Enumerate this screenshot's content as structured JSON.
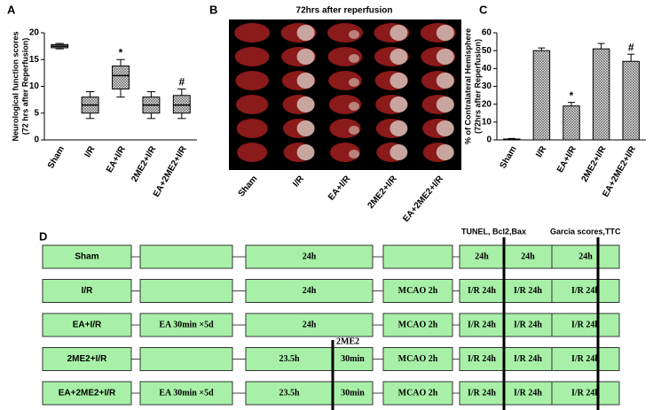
{
  "chart_data": [
    {
      "type": "box",
      "panel": "A",
      "ylabel": [
        "Neurological function scores",
        "(72 hrs after Reperfusion)"
      ],
      "categories": [
        "Sham",
        "I/R",
        "EA+I/R",
        "2ME2+I/R",
        "EA+2ME2+I/R"
      ],
      "min": [
        17,
        4,
        8,
        4,
        4
      ],
      "q1": [
        17.2,
        5,
        9.5,
        5,
        5
      ],
      "median": [
        17.5,
        6.5,
        12,
        6.5,
        6.5
      ],
      "q3": [
        17.8,
        8,
        13.8,
        8,
        8.3
      ],
      "max": [
        18,
        9,
        15,
        9,
        9.5
      ],
      "annotations": [
        null,
        null,
        "*",
        null,
        "#"
      ],
      "ylim": [
        0,
        20
      ],
      "yticks": [
        0,
        5,
        10,
        15,
        20
      ],
      "color": "#bdbdbd"
    },
    {
      "type": "bar",
      "panel": "C",
      "ylabel": [
        "% of Contralateral Hemisphere",
        "(72hrs after Reperfusion)"
      ],
      "categories": [
        "Sham",
        "I/R",
        "EA+I/R",
        "2ME2+I/R",
        "EA+2ME2+I/R"
      ],
      "values": [
        0.5,
        50,
        19,
        51,
        44
      ],
      "errors": [
        0.3,
        1.5,
        2,
        3,
        4
      ],
      "annotations": [
        null,
        null,
        "*",
        null,
        "#"
      ],
      "ylim": [
        0,
        60
      ],
      "yticks": [
        0,
        10,
        20,
        30,
        40,
        50,
        60
      ],
      "color": "#bdbdbd"
    }
  ],
  "image_panel": {
    "panel": "B",
    "title": "72hrs after reperfusion",
    "columns": [
      "Sham",
      "I/R",
      "EA+I/R",
      "2ME2+I/R",
      "EA+2ME2+I/R"
    ]
  },
  "diagram": {
    "panel": "D",
    "headers": [
      "TUNEL, Bcl2,Bax",
      "Garcia scores,TTC"
    ],
    "marker": "2ME2",
    "rows": [
      {
        "label": "Sham",
        "cells": [
          null,
          "24h",
          null,
          null,
          "24h",
          "24h",
          "24h"
        ]
      },
      {
        "label": "I/R",
        "cells": [
          null,
          "24h",
          null,
          "MCAO 2h",
          "I/R 24h",
          "I/R 24h",
          "I/R 24h"
        ]
      },
      {
        "label": "EA+I/R",
        "cells": [
          "EA 30min ×5d",
          "24h",
          null,
          "MCAO 2h",
          "I/R 24h",
          "I/R 24h",
          "I/R 24h"
        ]
      },
      {
        "label": "2ME2+I/R",
        "cells": [
          null,
          "23.5h",
          "30min",
          "MCAO 2h",
          "I/R 24h",
          "I/R 24h",
          "I/R 24h"
        ]
      },
      {
        "label": "EA+2ME2+I/R",
        "cells": [
          "EA 30min ×5d",
          "23.5h",
          "30min",
          "MCAO 2h",
          "I/R 24h",
          "I/R 24h",
          "I/R 24h"
        ]
      }
    ]
  }
}
